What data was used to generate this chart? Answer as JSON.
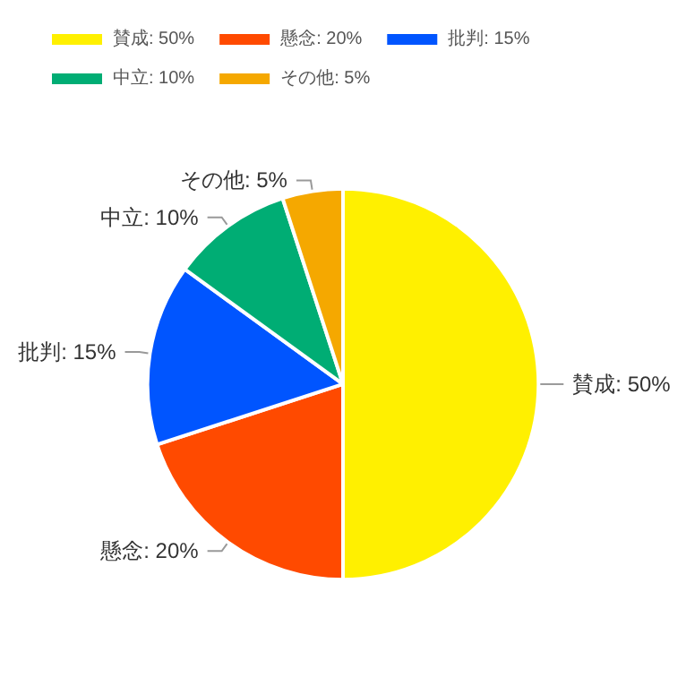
{
  "chart_data": {
    "type": "pie",
    "categories": [
      "賛成: 50%",
      "懸念: 20%",
      "批判: 15%",
      "中立: 10%",
      "その他: 5%"
    ],
    "values": [
      50,
      20,
      15,
      10,
      5
    ],
    "colors": [
      "#fff000",
      "#ff4a00",
      "#0055ff",
      "#00ad74",
      "#f5a800"
    ],
    "legend": "top left"
  }
}
